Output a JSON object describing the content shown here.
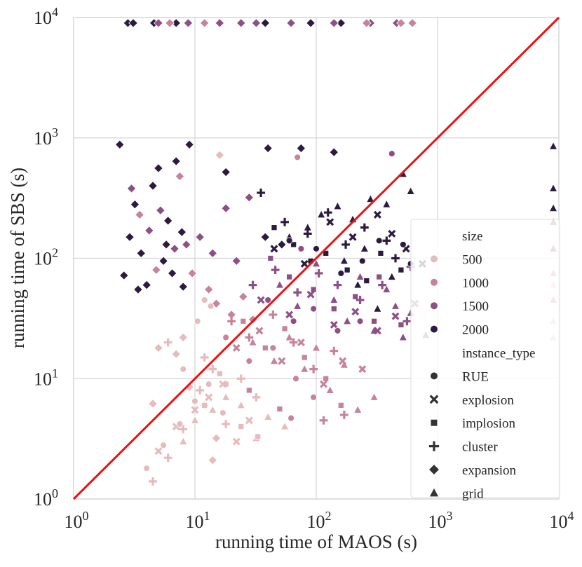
{
  "chart_data": {
    "type": "scatter",
    "title": "",
    "xlabel": "running time of MAOS (s)",
    "ylabel": "running time of SBS (s)",
    "xscale": "log",
    "yscale": "log",
    "xlim": [
      1,
      10000
    ],
    "ylim": [
      1,
      10000
    ],
    "x_ticks": [
      {
        "value": 1,
        "base": "10",
        "exp": "0"
      },
      {
        "value": 10,
        "base": "10",
        "exp": "1"
      },
      {
        "value": 100,
        "base": "10",
        "exp": "2"
      },
      {
        "value": 1000,
        "base": "10",
        "exp": "3"
      },
      {
        "value": 10000,
        "base": "10",
        "exp": "4"
      }
    ],
    "y_ticks": [
      {
        "value": 1,
        "base": "10",
        "exp": "0"
      },
      {
        "value": 10,
        "base": "10",
        "exp": "1"
      },
      {
        "value": 100,
        "base": "10",
        "exp": "2"
      },
      {
        "value": 1000,
        "base": "10",
        "exp": "3"
      },
      {
        "value": 10000,
        "base": "10",
        "exp": "4"
      }
    ],
    "grid": true,
    "reference_line": {
      "x": [
        1,
        10000
      ],
      "y": [
        1,
        10000
      ],
      "color": "#ee1111"
    },
    "legend": {
      "position": "right",
      "size_title": "size",
      "sizes": [
        {
          "label": "500",
          "color": "#e5bcbd"
        },
        {
          "label": "1000",
          "color": "#c68399"
        },
        {
          "label": "1500",
          "color": "#8e4f85"
        },
        {
          "label": "2000",
          "color": "#2d1a3f"
        }
      ],
      "type_title": "instance_type",
      "types": [
        {
          "label": "RUE",
          "marker": "circle"
        },
        {
          "label": "explosion",
          "marker": "x"
        },
        {
          "label": "implosion",
          "marker": "square"
        },
        {
          "label": "cluster",
          "marker": "plus"
        },
        {
          "label": "expansion",
          "marker": "diamond"
        },
        {
          "label": "grid",
          "marker": "triangle"
        }
      ],
      "marker_color": "#333333"
    },
    "series": [
      {
        "name": "size=2000, expansion",
        "size": "2000",
        "marker": "diamond",
        "points": [
          [
            2.4,
            880
          ],
          [
            2.9,
            150
          ],
          [
            3.2,
            280
          ],
          [
            3.6,
            110
          ],
          [
            4.0,
            60
          ],
          [
            4.5,
            400
          ],
          [
            5.0,
            560
          ],
          [
            5.5,
            95
          ],
          [
            6.0,
            205
          ],
          [
            6.5,
            75
          ],
          [
            7.0,
            640
          ],
          [
            7.8,
            165
          ],
          [
            9.0,
            880
          ],
          [
            2.6,
            72
          ],
          [
            3.4,
            55
          ],
          [
            5.8,
            130
          ],
          [
            8.0,
            58
          ],
          [
            2.8,
            9000
          ],
          [
            3.1,
            9000
          ],
          [
            4.6,
            9000
          ],
          [
            7.0,
            9000
          ],
          [
            38,
            9000
          ],
          [
            90,
            9000
          ],
          [
            160,
            9000
          ],
          [
            18,
            520
          ],
          [
            40,
            820
          ],
          [
            75,
            820
          ],
          [
            140,
            760
          ],
          [
            38,
            150
          ],
          [
            52,
            130
          ]
        ]
      },
      {
        "name": "size=1500, expansion",
        "size": "1500",
        "marker": "diamond",
        "points": [
          [
            3.0,
            380
          ],
          [
            4.2,
            170
          ],
          [
            5.2,
            250
          ],
          [
            6.8,
            120
          ],
          [
            8.5,
            130
          ],
          [
            11,
            150
          ],
          [
            14,
            110
          ],
          [
            18,
            260
          ],
          [
            22,
            95
          ],
          [
            28,
            320
          ],
          [
            16,
            9000
          ],
          [
            24,
            9000
          ],
          [
            32,
            9000
          ],
          [
            5.0,
            9000
          ],
          [
            8.8,
            9000
          ],
          [
            62,
            9000
          ],
          [
            140,
            9000
          ],
          [
            280,
            9000
          ],
          [
            460,
            9000
          ]
        ]
      },
      {
        "name": "size=1000, expansion",
        "size": "1000",
        "marker": "diamond",
        "points": [
          [
            3.5,
            230
          ],
          [
            4.8,
            80
          ],
          [
            7.5,
            480
          ],
          [
            9.5,
            75
          ],
          [
            13,
            55
          ],
          [
            15,
            42
          ],
          [
            20,
            34
          ],
          [
            25,
            48
          ],
          [
            30,
            31
          ],
          [
            6.2,
            9000
          ],
          [
            12,
            9000
          ],
          [
            260,
            9000
          ],
          [
            500,
            9000
          ],
          [
            620,
            9000
          ]
        ]
      },
      {
        "name": "size=500, expansion",
        "size": "500",
        "marker": "diamond",
        "points": [
          [
            7,
            16
          ],
          [
            9,
            8.5
          ],
          [
            12,
            6
          ],
          [
            15,
            3.2
          ],
          [
            16,
            720
          ],
          [
            5,
            18
          ],
          [
            8,
            22
          ],
          [
            4.5,
            6.2
          ],
          [
            14,
            2.1
          ]
        ]
      },
      {
        "name": "size=2000, grid",
        "size": "2000",
        "marker": "triangle",
        "points": [
          [
            60,
            150
          ],
          [
            85,
            180
          ],
          [
            110,
            230
          ],
          [
            150,
            270
          ],
          [
            200,
            210
          ],
          [
            280,
            310
          ],
          [
            380,
            280
          ],
          [
            520,
            500
          ],
          [
            600,
            360
          ],
          [
            9000,
            850
          ],
          [
            9000,
            380
          ],
          [
            9000,
            260
          ],
          [
            140,
            45
          ],
          [
            220,
            60
          ],
          [
            320,
            38
          ],
          [
            420,
            70
          ],
          [
            170,
            95
          ],
          [
            250,
            120
          ]
        ]
      },
      {
        "name": "size=1500, grid",
        "size": "1500",
        "marker": "triangle",
        "points": [
          [
            50,
            60
          ],
          [
            70,
            40
          ],
          [
            100,
            90
          ],
          [
            140,
            45
          ],
          [
            180,
            30
          ],
          [
            230,
            70
          ],
          [
            300,
            25
          ],
          [
            380,
            55
          ],
          [
            450,
            40
          ],
          [
            520,
            22
          ],
          [
            600,
            35
          ],
          [
            800,
            23
          ],
          [
            9000,
            120
          ],
          [
            9000,
            200
          ]
        ]
      },
      {
        "name": "size=1000, grid",
        "size": "1000",
        "marker": "triangle",
        "points": [
          [
            30,
            20
          ],
          [
            45,
            14
          ],
          [
            60,
            22
          ],
          [
            80,
            12
          ],
          [
            100,
            18
          ],
          [
            130,
            8
          ],
          [
            170,
            13
          ],
          [
            220,
            5.5
          ],
          [
            300,
            7
          ],
          [
            9000,
            75
          ],
          [
            9000,
            45
          ]
        ]
      },
      {
        "name": "size=500, grid",
        "size": "500",
        "marker": "triangle",
        "points": [
          [
            8,
            3
          ],
          [
            10,
            4.5
          ],
          [
            14,
            5.5
          ],
          [
            18,
            7
          ],
          [
            24,
            6
          ],
          [
            32,
            3.2
          ],
          [
            40,
            4.8
          ],
          [
            55,
            4
          ],
          [
            9000,
            30
          ],
          [
            9000,
            22
          ],
          [
            9000,
            60
          ]
        ]
      },
      {
        "name": "size=2000, square",
        "size": "2000",
        "marker": "square",
        "points": [
          [
            65,
            130
          ],
          [
            90,
            95
          ],
          [
            120,
            110
          ],
          [
            180,
            80
          ],
          [
            260,
            65
          ],
          [
            340,
            110
          ],
          [
            500,
            80
          ],
          [
            45,
            180
          ]
        ]
      },
      {
        "name": "size=1500, square",
        "size": "1500",
        "marker": "square",
        "points": [
          [
            42,
            100
          ],
          [
            60,
            70
          ],
          [
            95,
            55
          ],
          [
            140,
            38
          ],
          [
            210,
            48
          ],
          [
            300,
            30
          ],
          [
            500,
            28
          ],
          [
            330,
            70
          ]
        ]
      },
      {
        "name": "size=1000, square",
        "size": "1000",
        "marker": "square",
        "points": [
          [
            25,
            30
          ],
          [
            38,
            18
          ],
          [
            55,
            26
          ],
          [
            80,
            15
          ],
          [
            120,
            10
          ],
          [
            160,
            6
          ],
          [
            28,
            8
          ],
          [
            50,
            5.6
          ]
        ]
      },
      {
        "name": "size=500, square",
        "size": "500",
        "marker": "square",
        "points": [
          [
            12,
            6
          ],
          [
            18,
            9
          ],
          [
            24,
            4
          ],
          [
            33,
            3.3
          ],
          [
            16,
            11
          ]
        ]
      },
      {
        "name": "size=2000, cluster",
        "size": "2000",
        "marker": "plus",
        "points": [
          [
            35,
            350
          ],
          [
            55,
            200
          ],
          [
            85,
            160
          ],
          [
            125,
            240
          ],
          [
            175,
            130
          ],
          [
            250,
            180
          ],
          [
            380,
            140
          ],
          [
            450,
            100
          ]
        ]
      },
      {
        "name": "size=1500, cluster",
        "size": "1500",
        "marker": "plus",
        "points": [
          [
            30,
            60
          ],
          [
            46,
            80
          ],
          [
            70,
            52
          ],
          [
            105,
            75
          ],
          [
            150,
            60
          ],
          [
            230,
            45
          ],
          [
            350,
            60
          ],
          [
            560,
            30
          ],
          [
            600,
            85
          ]
        ]
      },
      {
        "name": "size=1000, cluster",
        "size": "1000",
        "marker": "plus",
        "points": [
          [
            20,
            30
          ],
          [
            28,
            22
          ],
          [
            44,
            34
          ],
          [
            65,
            20
          ],
          [
            95,
            12
          ],
          [
            140,
            17
          ],
          [
            115,
            4.5
          ],
          [
            170,
            5.0
          ]
        ]
      },
      {
        "name": "size=500, cluster",
        "size": "500",
        "marker": "plus",
        "points": [
          [
            4.5,
            1.4
          ],
          [
            6,
            2.2
          ],
          [
            8,
            3.8
          ],
          [
            11,
            8
          ],
          [
            14,
            12
          ],
          [
            18,
            4.2
          ],
          [
            24,
            10
          ],
          [
            32,
            7
          ],
          [
            6,
            20
          ],
          [
            12,
            15
          ]
        ]
      },
      {
        "name": "size=2000, explosion",
        "size": "2000",
        "marker": "x",
        "points": [
          [
            45,
            120
          ],
          [
            80,
            90
          ],
          [
            130,
            200
          ],
          [
            200,
            150
          ],
          [
            320,
            230
          ],
          [
            420,
            160
          ],
          [
            550,
            120
          ],
          [
            750,
            90
          ]
        ]
      },
      {
        "name": "size=1500, explosion",
        "size": "1500",
        "marker": "x",
        "points": [
          [
            35,
            45
          ],
          [
            60,
            34
          ],
          [
            90,
            50
          ],
          [
            140,
            28
          ],
          [
            210,
            36
          ],
          [
            320,
            25
          ],
          [
            450,
            33
          ],
          [
            650,
            42
          ]
        ]
      },
      {
        "name": "size=1000, explosion",
        "size": "1000",
        "marker": "x",
        "points": [
          [
            22,
            18
          ],
          [
            34,
            25
          ],
          [
            52,
            14
          ],
          [
            75,
            20
          ],
          [
            115,
            9
          ],
          [
            165,
            14
          ],
          [
            240,
            12
          ]
        ]
      },
      {
        "name": "size=500, explosion",
        "size": "500",
        "marker": "x",
        "points": [
          [
            5,
            2.5
          ],
          [
            7,
            4
          ],
          [
            10,
            5.5
          ],
          [
            13,
            7
          ],
          [
            17,
            9
          ],
          [
            22,
            3
          ],
          [
            28,
            4.5
          ]
        ]
      },
      {
        "name": "size=2000, RUE",
        "size": "2000",
        "marker": "circle",
        "points": [
          [
            60,
            140
          ],
          [
            100,
            120
          ],
          [
            160,
            75
          ],
          [
            240,
            95
          ],
          [
            330,
            140
          ],
          [
            520,
            130
          ],
          [
            600,
            90
          ]
        ]
      },
      {
        "name": "size=1500, RUE",
        "size": "1500",
        "marker": "circle",
        "points": [
          [
            40,
            45
          ],
          [
            65,
            30
          ],
          [
            95,
            38
          ],
          [
            150,
            25
          ],
          [
            230,
            30
          ],
          [
            420,
            740
          ],
          [
            75,
            120
          ]
        ]
      },
      {
        "name": "size=1000, RUE",
        "size": "1000",
        "marker": "circle",
        "points": [
          [
            18,
            22
          ],
          [
            28,
            14
          ],
          [
            44,
            18
          ],
          [
            68,
            10
          ],
          [
            95,
            7
          ],
          [
            70,
            690
          ],
          [
            62,
            4.7
          ]
        ]
      },
      {
        "name": "size=500, RUE",
        "size": "500",
        "marker": "circle",
        "points": [
          [
            4,
            1.8
          ],
          [
            5.5,
            2.8
          ],
          [
            7.5,
            4.2
          ],
          [
            10,
            6.5
          ],
          [
            13,
            9
          ],
          [
            17,
            5.2
          ],
          [
            10.5,
            30
          ],
          [
            12,
            45
          ],
          [
            13.5,
            40
          ],
          [
            8,
            12
          ]
        ]
      }
    ]
  }
}
